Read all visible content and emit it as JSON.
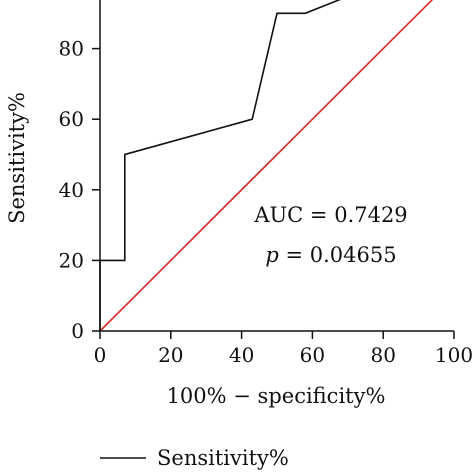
{
  "chart_data": {
    "type": "line",
    "xlabel": "100% − specificity%",
    "ylabel": "Sensitivity%",
    "xlim": [
      0,
      100
    ],
    "ylim": [
      0,
      100
    ],
    "x_ticks": [
      "0",
      "20",
      "40",
      "60",
      "80",
      "100"
    ],
    "y_ticks": [
      "0",
      "20",
      "40",
      "60",
      "80"
    ],
    "series": [
      {
        "name": "Sensitivity%",
        "color": "#111111",
        "points": [
          [
            0,
            0
          ],
          [
            0,
            20
          ],
          [
            7,
            20
          ],
          [
            7,
            50
          ],
          [
            43,
            60
          ],
          [
            50,
            90
          ],
          [
            58,
            90
          ],
          [
            68,
            94
          ],
          [
            75,
            100
          ]
        ]
      },
      {
        "color": "#d62728",
        "points": [
          [
            0,
            0
          ],
          [
            100,
            100
          ]
        ]
      }
    ],
    "annotations": {
      "auc": "AUC = 0.7429",
      "p_italic": "p",
      "p_rest": " = 0.04655"
    },
    "legend": {
      "entry": "Sensitivity%",
      "placement": "bottom-left"
    }
  }
}
